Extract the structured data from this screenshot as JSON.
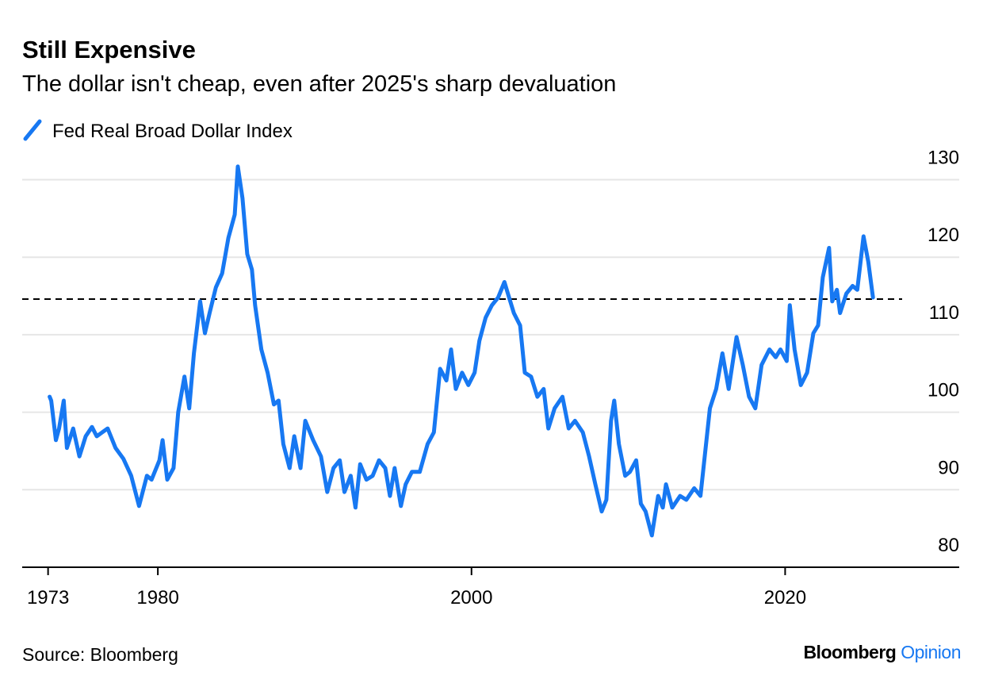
{
  "chart_data": {
    "type": "line",
    "title": "Still Expensive",
    "subtitle": "The dollar isn't cheap, even after 2025's sharp devaluation",
    "source": "Source: Bloomberg",
    "brand": {
      "name": "Bloomberg",
      "section": "Opinion"
    },
    "xlim": [
      1971.35,
      2031.1
    ],
    "xticks": [
      1973,
      1980,
      2000,
      2020
    ],
    "ylim": [
      80,
      132
    ],
    "yticks": [
      80,
      90,
      100,
      110,
      120,
      130
    ],
    "grid": true,
    "reference_line": 114.6,
    "series": [
      {
        "name": "Fed Real Broad Dollar Index",
        "color": "#1778f2",
        "x": [
          1973.1,
          1973.2,
          1973.5,
          1973.7,
          1974.0,
          1974.2,
          1974.6,
          1975.0,
          1975.4,
          1975.8,
          1976.1,
          1976.8,
          1977.3,
          1977.8,
          1978.3,
          1978.8,
          1979.3,
          1979.6,
          1980.1,
          1980.3,
          1980.6,
          1981.0,
          1981.3,
          1981.7,
          1982.0,
          1982.3,
          1982.7,
          1983.0,
          1983.3,
          1983.7,
          1984.1,
          1984.5,
          1984.9,
          1985.1,
          1985.4,
          1985.7,
          1986.0,
          1986.2,
          1986.6,
          1987.0,
          1987.4,
          1987.7,
          1988.0,
          1988.4,
          1988.7,
          1989.1,
          1989.4,
          1989.9,
          1990.4,
          1990.8,
          1991.2,
          1991.6,
          1991.9,
          1992.3,
          1992.6,
          1992.9,
          1993.3,
          1993.7,
          1994.1,
          1994.5,
          1994.8,
          1995.1,
          1995.5,
          1995.8,
          1996.2,
          1996.7,
          1997.2,
          1997.6,
          1998.0,
          1998.4,
          1998.7,
          1999.0,
          1999.4,
          1999.8,
          2000.2,
          2000.5,
          2000.9,
          2001.3,
          2001.7,
          2002.1,
          2002.4,
          2002.7,
          2003.1,
          2003.4,
          2003.8,
          2004.2,
          2004.6,
          2004.9,
          2005.3,
          2005.8,
          2006.2,
          2006.6,
          2007.1,
          2007.5,
          2007.9,
          2008.3,
          2008.6,
          2008.9,
          2009.1,
          2009.4,
          2009.8,
          2010.1,
          2010.5,
          2010.8,
          2011.1,
          2011.5,
          2011.9,
          2012.2,
          2012.4,
          2012.8,
          2013.3,
          2013.7,
          2014.2,
          2014.6,
          2014.9,
          2015.2,
          2015.6,
          2016.0,
          2016.4,
          2016.9,
          2017.3,
          2017.7,
          2018.1,
          2018.5,
          2019.0,
          2019.4,
          2019.7,
          2020.1,
          2020.3,
          2020.6,
          2021.0,
          2021.4,
          2021.8,
          2022.1,
          2022.4,
          2022.8,
          2023.0,
          2023.3,
          2023.5,
          2023.9,
          2024.3,
          2024.6,
          2025.0,
          2025.3,
          2025.6
        ],
        "values": [
          102.0,
          101.5,
          96.4,
          97.9,
          101.5,
          95.4,
          97.9,
          94.3,
          96.9,
          98.1,
          96.9,
          97.9,
          95.4,
          94.0,
          91.8,
          87.9,
          91.8,
          91.3,
          93.8,
          96.4,
          91.3,
          92.8,
          100.0,
          104.6,
          100.5,
          107.6,
          114.3,
          110.2,
          112.8,
          116.1,
          117.9,
          122.5,
          125.5,
          131.7,
          127.6,
          120.4,
          118.4,
          113.8,
          108.1,
          105.1,
          101.0,
          101.5,
          95.9,
          92.8,
          96.9,
          92.8,
          98.9,
          96.4,
          94.3,
          89.7,
          92.8,
          93.8,
          89.7,
          91.8,
          87.7,
          93.3,
          91.3,
          91.8,
          93.8,
          92.8,
          89.2,
          92.8,
          87.9,
          90.7,
          92.3,
          92.3,
          95.9,
          97.4,
          105.6,
          104.1,
          108.1,
          103.0,
          105.1,
          103.5,
          105.1,
          109.2,
          112.2,
          113.8,
          114.8,
          116.8,
          114.8,
          112.8,
          111.2,
          105.1,
          104.6,
          102.0,
          103.0,
          97.9,
          100.5,
          102.0,
          97.9,
          98.9,
          97.4,
          94.3,
          90.7,
          87.2,
          88.7,
          98.9,
          101.5,
          95.9,
          91.8,
          92.3,
          93.8,
          88.2,
          87.2,
          84.1,
          89.2,
          87.7,
          90.7,
          87.7,
          89.2,
          88.7,
          90.2,
          89.2,
          94.8,
          100.5,
          103.0,
          107.6,
          103.0,
          109.7,
          106.1,
          102.0,
          100.5,
          106.1,
          108.1,
          107.1,
          108.1,
          106.6,
          113.8,
          108.1,
          103.5,
          105.1,
          110.2,
          111.2,
          117.4,
          121.2,
          114.3,
          115.8,
          112.8,
          115.3,
          116.3,
          115.8,
          122.7,
          119.4,
          114.8
        ]
      }
    ]
  }
}
